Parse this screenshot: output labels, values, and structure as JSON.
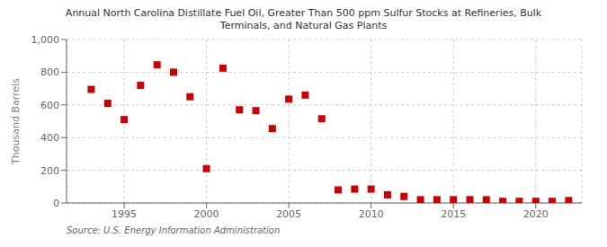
{
  "chart_data": {
    "type": "scatter",
    "title": "Annual North Carolina Distillate Fuel Oil, Greater Than 500 ppm Sulfur Stocks at Refineries, Bulk\nTerminals, and Natural Gas Plants",
    "ylabel": "Thousand Barrels",
    "source": "Source: U.S. Energy Information Administration",
    "color": "#cc0000",
    "marker": "square",
    "grid": true,
    "xlim": [
      1991.5,
      2022.8
    ],
    "ylim": [
      0,
      1000
    ],
    "xticks": [
      1995,
      2000,
      2005,
      2010,
      2015,
      2020
    ],
    "yticks": [
      0,
      200,
      400,
      600,
      800,
      {
        "value": 1000,
        "label": "1,000"
      }
    ],
    "x": [
      1993,
      1994,
      1995,
      1996,
      1997,
      1998,
      1999,
      2000,
      2001,
      2002,
      2003,
      2004,
      2005,
      2006,
      2007,
      2008,
      2009,
      2010,
      2011,
      2012,
      2013,
      2014,
      2015,
      2016,
      2017,
      2018,
      2019,
      2020,
      2021,
      2022
    ],
    "values": [
      695,
      610,
      510,
      720,
      845,
      800,
      650,
      210,
      825,
      570,
      565,
      455,
      635,
      660,
      515,
      80,
      85,
      85,
      50,
      40,
      20,
      20,
      20,
      20,
      20,
      10,
      10,
      10,
      10,
      15
    ]
  }
}
